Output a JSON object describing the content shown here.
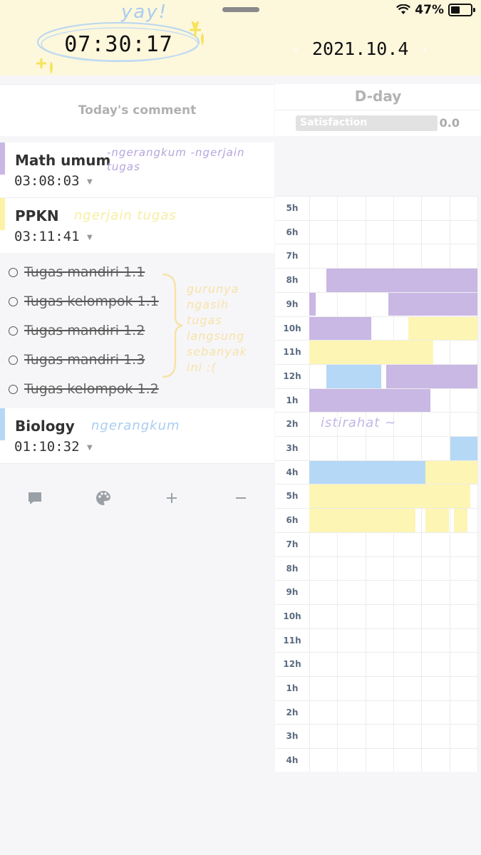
{
  "status_bar": {
    "battery_text": "47%",
    "battery_level": 0.47
  },
  "header": {
    "timer": "07:30:17",
    "date": "2021.10.4",
    "sticker_text": "yay!"
  },
  "comment": {
    "label": "Today's comment"
  },
  "dday": {
    "label": "D-day",
    "satisfaction_label": "Satisfaction",
    "satisfaction_value": "0.0"
  },
  "subjects": [
    {
      "name": "Math umum",
      "time": "03:08:03",
      "color": "#c9b7e4",
      "note": "-ngerangkum -ngerjain tugas"
    },
    {
      "name": "PPKN",
      "time": "03:11:41",
      "color": "#fdf1a6",
      "note": "ngerjain tugas"
    },
    {
      "name": "Biology",
      "time": "01:10:32",
      "color": "#b5d8f6",
      "note": "ngerangkum"
    }
  ],
  "tasks": [
    "Tugas mandiri 1.1",
    "Tugas kelompok 1.1",
    "Tugas mandiri 1.2",
    "Tugas mandiri 1.3",
    "Tugas kelompok 1.2"
  ],
  "task_note": "gurunya ngasih tugas langsung sebanyak ini :(",
  "toolbar": {
    "icons": [
      "comment-icon",
      "palette-icon",
      "plus-icon",
      "minus-icon"
    ]
  },
  "timetable": {
    "hours": [
      "5h",
      "6h",
      "7h",
      "8h",
      "9h",
      "10h",
      "11h",
      "12h",
      "1h",
      "2h",
      "3h",
      "4h",
      "5h",
      "6h",
      "7h",
      "8h",
      "9h",
      "10h",
      "11h",
      "12h",
      "1h",
      "2h",
      "3h",
      "4h"
    ],
    "break_note": "istirahat"
  },
  "colors": {
    "purple": "#c9b7e4",
    "yellow": "#fdf5b3",
    "blue": "#b5d8f6"
  }
}
